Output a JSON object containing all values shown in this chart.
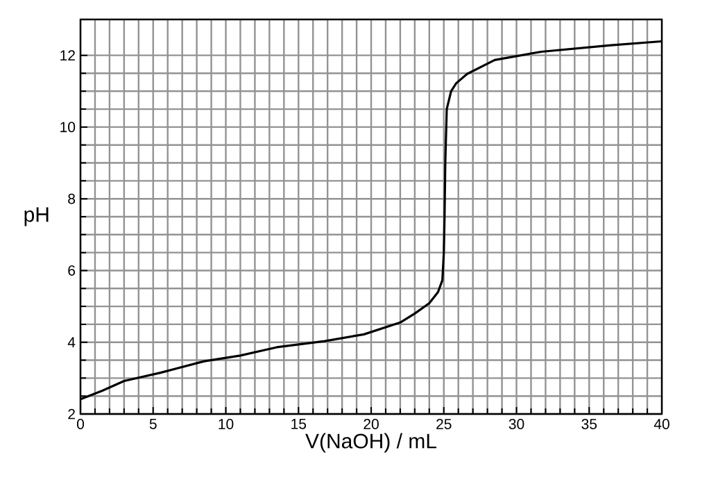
{
  "chart_data": {
    "type": "line",
    "xlabel": "V(NaOH) / mL",
    "ylabel": "pH",
    "xlim": [
      0,
      40
    ],
    "ylim": [
      2,
      13
    ],
    "xticks": [
      0,
      5,
      10,
      15,
      20,
      25,
      30,
      35,
      40
    ],
    "yticks": [
      2,
      4,
      6,
      8,
      10,
      12
    ],
    "grid": true,
    "marker": "none",
    "line_style": "solid",
    "series": [
      {
        "color": "#000000",
        "x": [
          0,
          1.5,
          3.0,
          5.5,
          8.5,
          11,
          13.5,
          16.8,
          19.5,
          22,
          23,
          24,
          24.6,
          24.9,
          25.0,
          25.05,
          25.1,
          25.2,
          25.5,
          25.85,
          26.6,
          28.5,
          31.7,
          36.5,
          40
        ],
        "values": [
          2.41,
          2.65,
          2.92,
          3.15,
          3.47,
          3.63,
          3.86,
          4.03,
          4.22,
          4.55,
          4.8,
          5.09,
          5.4,
          5.73,
          6.5,
          7.5,
          9.0,
          10.5,
          11.0,
          11.22,
          11.48,
          11.87,
          12.1,
          12.28,
          12.39
        ]
      }
    ]
  }
}
